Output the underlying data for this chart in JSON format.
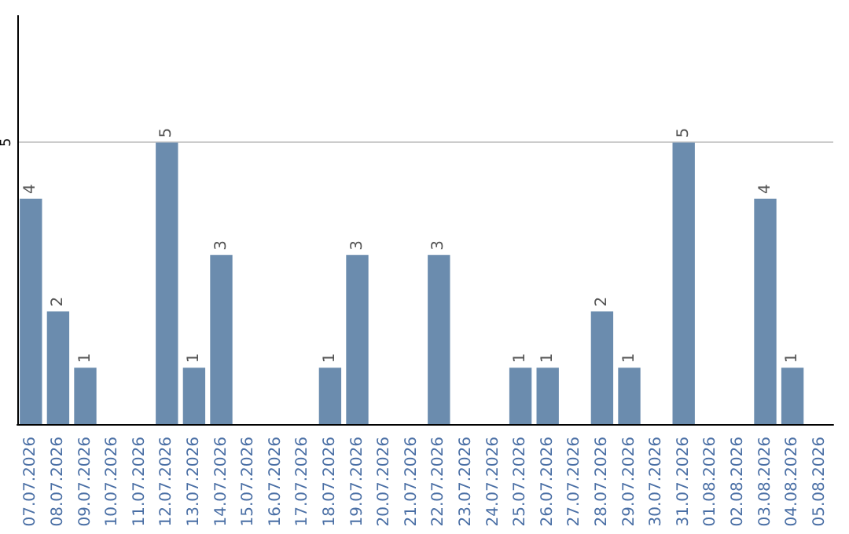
{
  "chart_data": {
    "type": "bar",
    "categories": [
      "07.07.2026",
      "08.07.2026",
      "09.07.2026",
      "10.07.2026",
      "11.07.2026",
      "12.07.2026",
      "13.07.2026",
      "14.07.2026",
      "15.07.2026",
      "16.07.2026",
      "17.07.2026",
      "18.07.2026",
      "19.07.2026",
      "20.07.2026",
      "21.07.2026",
      "22.07.2026",
      "23.07.2026",
      "24.07.2026",
      "25.07.2026",
      "26.07.2026",
      "27.07.2026",
      "28.07.2026",
      "29.07.2026",
      "30.07.2026",
      "31.07.2026",
      "01.08.2026",
      "02.08.2026",
      "03.08.2026",
      "04.08.2026",
      "05.08.2026"
    ],
    "values": [
      4,
      2,
      1,
      0,
      0,
      5,
      1,
      3,
      0,
      0,
      0,
      1,
      3,
      0,
      0,
      3,
      0,
      0,
      1,
      1,
      0,
      2,
      1,
      0,
      5,
      0,
      0,
      4,
      1,
      0
    ],
    "value_labels": [
      "4",
      "2",
      "1",
      null,
      null,
      "5",
      "1",
      "3",
      null,
      null,
      null,
      "1",
      "3",
      null,
      null,
      "3",
      null,
      null,
      "1",
      "1",
      null,
      "2",
      "1",
      null,
      "5",
      null,
      null,
      "4",
      "1",
      null
    ],
    "color": "#6b8cae",
    "ylim": [
      0,
      7.25
    ],
    "yticks": [
      5
    ],
    "grid": "y"
  }
}
